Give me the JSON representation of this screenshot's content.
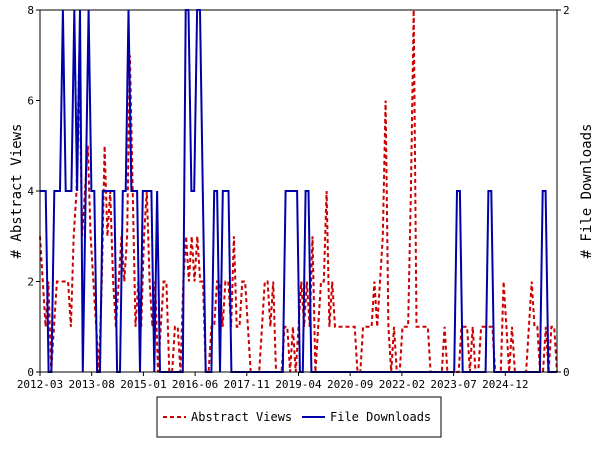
{
  "chart_data": {
    "type": "line",
    "x_labels": [
      "2012-03",
      "2013-08",
      "2015-01",
      "2016-06",
      "2017-11",
      "2019-04",
      "2020-09",
      "2022-02",
      "2023-07",
      "2024-12"
    ],
    "left_axis": {
      "label": "# Abstract Views",
      "ylim": [
        0,
        8
      ],
      "ticks": [
        "0",
        "2",
        "4",
        "6",
        "8"
      ]
    },
    "right_axis": {
      "label": "# File Downloads",
      "ylim": [
        0,
        2
      ],
      "ticks": [
        "0",
        "2"
      ]
    },
    "series": [
      {
        "name": "Abstract Views",
        "axis": "left",
        "color": "#cc0000",
        "style": "dashed",
        "values": [
          3,
          2,
          1,
          2,
          0,
          1,
          2,
          2,
          2,
          2,
          2,
          1,
          3,
          4,
          7,
          3,
          4,
          5,
          3,
          2,
          1,
          0,
          2,
          5,
          3,
          4,
          2,
          1,
          2,
          3,
          2,
          3,
          7,
          4,
          1,
          2,
          1,
          3,
          4,
          2,
          1,
          2,
          0,
          1,
          2,
          2,
          0,
          0,
          1,
          1,
          0,
          2,
          3,
          2,
          3,
          2,
          3,
          2,
          2,
          0,
          0,
          1,
          1,
          2,
          2,
          1,
          2,
          2,
          1,
          3,
          1,
          1,
          2,
          2,
          1,
          0,
          0,
          0,
          0,
          1,
          2,
          2,
          1,
          2,
          0,
          0,
          0,
          1,
          1,
          0,
          1,
          0,
          1,
          2,
          1,
          2,
          1,
          3,
          0,
          1,
          2,
          2,
          4,
          1,
          2,
          1,
          1,
          1,
          1,
          1,
          1,
          1,
          1,
          0,
          0,
          1,
          1,
          1,
          1,
          2,
          1,
          2,
          3,
          6,
          1,
          0,
          1,
          0,
          0,
          1,
          1,
          1,
          4,
          8,
          1,
          1,
          1,
          1,
          1,
          0,
          0,
          0,
          0,
          0,
          1,
          0,
          0,
          0,
          0,
          0,
          1,
          1,
          1,
          0,
          1,
          0,
          0,
          1,
          1,
          1,
          1,
          1,
          0,
          0,
          0,
          2,
          1,
          0,
          1,
          0,
          0,
          0,
          0,
          0,
          1,
          2,
          1,
          1,
          0,
          0,
          1,
          0,
          1,
          1,
          0
        ]
      },
      {
        "name": "File Downloads",
        "axis": "right",
        "color": "#0000aa",
        "style": "solid",
        "values": [
          1,
          1,
          1,
          0,
          0,
          1,
          1,
          1,
          2,
          1,
          1,
          1,
          2,
          1,
          2,
          0,
          1,
          2,
          1,
          1,
          0,
          0,
          1,
          1,
          1,
          1,
          1,
          0,
          0,
          1,
          1,
          2,
          1,
          1,
          1,
          0,
          1,
          1,
          1,
          1,
          0,
          1,
          0,
          0,
          0,
          0,
          0,
          0,
          0,
          0,
          0,
          2,
          2,
          1,
          1,
          2,
          2,
          1,
          0,
          0,
          0,
          1,
          1,
          0,
          1,
          1,
          1,
          0,
          0,
          0,
          0,
          0,
          0,
          0,
          0,
          0,
          0,
          0,
          0,
          0,
          0,
          0,
          0,
          0,
          0,
          0,
          1,
          1,
          1,
          1,
          1,
          0,
          0,
          1,
          1,
          0,
          0,
          0,
          0,
          0,
          0,
          0,
          0,
          0,
          0,
          0,
          0,
          0,
          0,
          0,
          0,
          0,
          0,
          0,
          0,
          0,
          0,
          0,
          0,
          0,
          0,
          0,
          0,
          0,
          0,
          0,
          0,
          0,
          0,
          0,
          0,
          0,
          0,
          0,
          0,
          0,
          0,
          0,
          0,
          0,
          0,
          0,
          0,
          0,
          0,
          0,
          1,
          1,
          0,
          0,
          0,
          0,
          0,
          0,
          0,
          0,
          0,
          1,
          1,
          0,
          0,
          0,
          0,
          0,
          0,
          0,
          0,
          0,
          0,
          0,
          0,
          0,
          0,
          0,
          0,
          0,
          1,
          1,
          0,
          0,
          0,
          0
        ]
      }
    ],
    "legend": {
      "placement": "bottom"
    },
    "grid": false
  }
}
